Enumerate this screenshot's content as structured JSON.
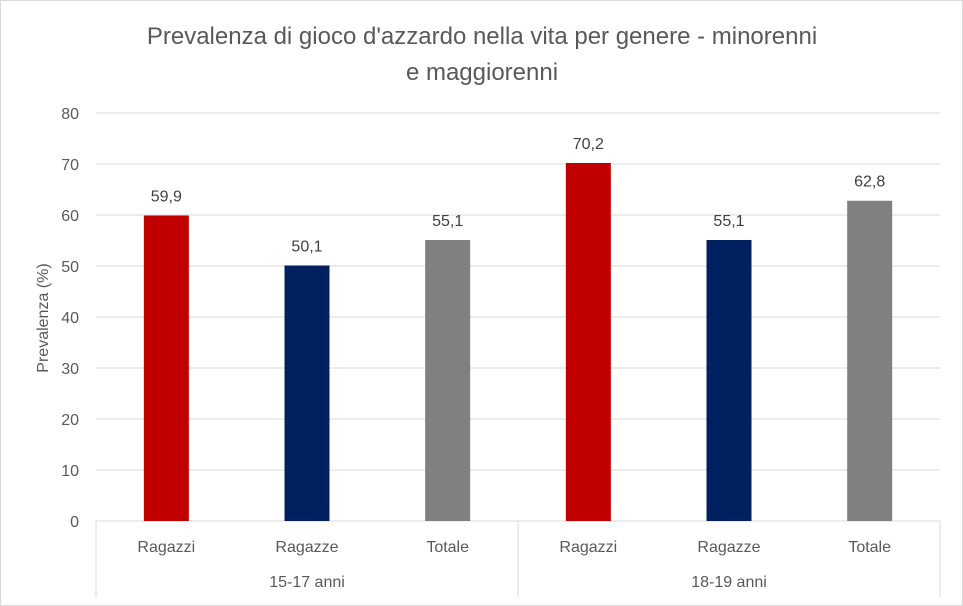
{
  "chart_data": {
    "type": "bar",
    "title_line1": "Prevalenza di gioco d'azzardo nella vita per genere - minorenni",
    "title_line2": "e maggiorenni",
    "ylabel": "Prevalenza (%)",
    "ylim": [
      0,
      80
    ],
    "yticks": [
      0,
      10,
      20,
      30,
      40,
      50,
      60,
      70,
      80
    ],
    "grid": true,
    "groups": [
      {
        "label": "15-17 anni",
        "bars": [
          {
            "category": "Ragazzi",
            "value": 59.9,
            "label": "59,9",
            "color": "#c00000"
          },
          {
            "category": "Ragazze",
            "value": 50.1,
            "label": "50,1",
            "color": "#002060"
          },
          {
            "category": "Totale",
            "value": 55.1,
            "label": "55,1",
            "color": "#808080"
          }
        ]
      },
      {
        "label": "18-19 anni",
        "bars": [
          {
            "category": "Ragazzi",
            "value": 70.2,
            "label": "70,2",
            "color": "#c00000"
          },
          {
            "category": "Ragazze",
            "value": 55.1,
            "label": "55,1",
            "color": "#002060"
          },
          {
            "category": "Totale",
            "value": 62.8,
            "label": "62,8",
            "color": "#808080"
          }
        ]
      }
    ]
  }
}
